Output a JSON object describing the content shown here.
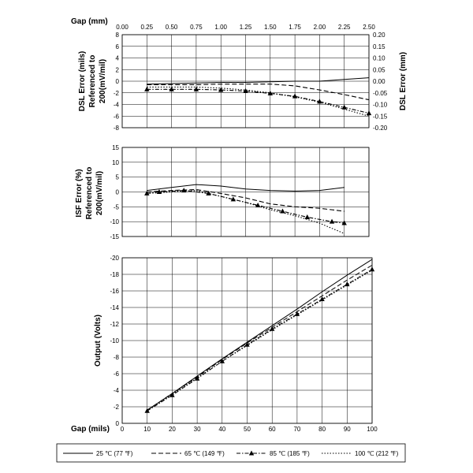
{
  "chart_data": [
    {
      "type": "line",
      "id": "dsl",
      "xlabel_top": "Gap (mm)",
      "ylabel_left": [
        "DSL Error (mils)",
        "Referenced to",
        "200(mV/mil)"
      ],
      "ylabel_right": "DSL Error (mm)",
      "x_mm_ticks": [
        "0.00",
        "0.25",
        "0.50",
        "0.75",
        "1.00",
        "1.25",
        "1.50",
        "1.75",
        "2.00",
        "2.25",
        "2.50"
      ],
      "y_left_ticks": [
        "8",
        "6",
        "4",
        "2",
        "0",
        "-2",
        "-4",
        "-6",
        "-8"
      ],
      "y_right_ticks": [
        "0.20",
        "0.15",
        "0.10",
        "0.05",
        "0.00",
        "-0.05",
        "-0.10",
        "-0.15",
        "-0.20"
      ],
      "ylim": [
        -8,
        8
      ],
      "grid": true,
      "series": [
        {
          "name": "25 ℃ (77 ℉)",
          "style": "solid",
          "x": [
            10,
            20,
            30,
            40,
            50,
            60,
            70,
            80,
            90,
            100
          ],
          "y": [
            -0.5,
            -0.4,
            -0.3,
            -0.2,
            -0.2,
            -0.1,
            0.0,
            0.0,
            0.3,
            0.6
          ]
        },
        {
          "name": "65 ℃ (149 ℉)",
          "style": "dashed",
          "x": [
            10,
            20,
            30,
            40,
            50,
            60,
            70,
            80,
            90,
            100
          ],
          "y": [
            -0.6,
            -0.6,
            -0.6,
            -0.5,
            -0.5,
            -0.5,
            -0.8,
            -1.5,
            -2.3,
            -3.2
          ]
        },
        {
          "name": "85 ℃ (185 ℉)",
          "style": "dashdot-triangle",
          "x": [
            10,
            20,
            30,
            40,
            50,
            60,
            70,
            80,
            90,
            100
          ],
          "y": [
            -1.4,
            -1.4,
            -1.4,
            -1.5,
            -1.7,
            -2.1,
            -2.6,
            -3.5,
            -4.5,
            -5.5
          ]
        },
        {
          "name": "100 ℃ (212 ℉)",
          "style": "dotted",
          "x": [
            10,
            20,
            30,
            40,
            50,
            60,
            70,
            80,
            90,
            100
          ],
          "y": [
            -1.0,
            -1.0,
            -1.0,
            -1.2,
            -1.5,
            -2.0,
            -2.7,
            -3.6,
            -4.8,
            -6.0
          ]
        }
      ]
    },
    {
      "type": "line",
      "id": "isf",
      "ylabel_left": [
        "ISF Error (%)",
        "Referenced to",
        "200(mV/mil)"
      ],
      "y_left_ticks": [
        "15",
        "10",
        "5",
        "0",
        "-5",
        "-10",
        "-15"
      ],
      "ylim": [
        -15,
        15
      ],
      "grid": true,
      "series": [
        {
          "name": "25 ℃ (77 ℉)",
          "style": "solid",
          "x": [
            10,
            20,
            30,
            40,
            50,
            60,
            70,
            80,
            90
          ],
          "y": [
            0.5,
            1.5,
            2.5,
            2.0,
            1.0,
            0.5,
            0.3,
            0.5,
            1.5
          ]
        },
        {
          "name": "65 ℃ (149 ℉)",
          "style": "dashed",
          "x": [
            10,
            20,
            30,
            40,
            50,
            60,
            70,
            80,
            90
          ],
          "y": [
            0.0,
            0.5,
            0.8,
            -0.5,
            -2.0,
            -4.0,
            -5.0,
            -5.5,
            -6.5
          ]
        },
        {
          "name": "85 ℃ (185 ℉)",
          "style": "dashdot-triangle",
          "x": [
            10,
            15,
            25,
            35,
            45,
            55,
            65,
            75,
            85,
            90
          ],
          "y": [
            -0.5,
            0.0,
            0.5,
            -0.5,
            -2.5,
            -4.5,
            -6.5,
            -8.5,
            -10.0,
            -10.5
          ]
        },
        {
          "name": "100 ℃ (212 ℉)",
          "style": "dotted",
          "x": [
            10,
            20,
            30,
            40,
            50,
            60,
            70,
            80,
            90
          ],
          "y": [
            -0.5,
            0.0,
            0.5,
            -1.5,
            -3.5,
            -6.0,
            -8.0,
            -10.5,
            -14.0
          ]
        }
      ]
    },
    {
      "type": "line",
      "id": "output",
      "xlabel": "Gap (mils)",
      "ylabel": "Output (Volts)",
      "x_ticks": [
        "0",
        "10",
        "20",
        "30",
        "40",
        "50",
        "60",
        "70",
        "80",
        "90",
        "100"
      ],
      "y_ticks": [
        "-20",
        "-18",
        "-16",
        "-14",
        "-12",
        "-10",
        "-8",
        "-6",
        "-4",
        "-2",
        "0"
      ],
      "xlim": [
        0,
        100
      ],
      "ylim": [
        0,
        -20
      ],
      "grid": true,
      "series": [
        {
          "name": "25 ℃ (77 ℉)",
          "style": "solid",
          "x": [
            10,
            20,
            30,
            40,
            50,
            60,
            70,
            80,
            90,
            100
          ],
          "y": [
            -1.6,
            -3.6,
            -5.7,
            -7.8,
            -9.8,
            -11.8,
            -13.8,
            -15.9,
            -17.9,
            -19.8
          ]
        },
        {
          "name": "65 ℃ (149 ℉)",
          "style": "dashed",
          "x": [
            10,
            20,
            30,
            40,
            50,
            60,
            70,
            80,
            90,
            100
          ],
          "y": [
            -1.6,
            -3.6,
            -5.6,
            -7.7,
            -9.7,
            -11.6,
            -13.5,
            -15.4,
            -17.3,
            -19.1
          ]
        },
        {
          "name": "85 ℃ (185 ℉)",
          "style": "dashdot-triangle",
          "x": [
            10,
            20,
            30,
            40,
            50,
            60,
            70,
            80,
            90,
            100
          ],
          "y": [
            -1.5,
            -3.4,
            -5.4,
            -7.5,
            -9.5,
            -11.4,
            -13.2,
            -15.0,
            -16.8,
            -18.6
          ]
        },
        {
          "name": "100 ℃ (212 ℉)",
          "style": "dotted",
          "x": [
            10,
            20,
            30,
            40,
            50,
            60,
            70,
            80,
            90,
            100
          ],
          "y": [
            -1.5,
            -3.5,
            -5.5,
            -7.5,
            -9.4,
            -11.3,
            -13.1,
            -14.9,
            -16.7,
            -18.5
          ]
        }
      ]
    }
  ],
  "legend": {
    "items": [
      "25 ℃ (77 ℉)",
      "65 ℃ (149 ℉)",
      "85 ℃ (185 ℉)",
      "100 ℃ (212 ℉)"
    ]
  }
}
